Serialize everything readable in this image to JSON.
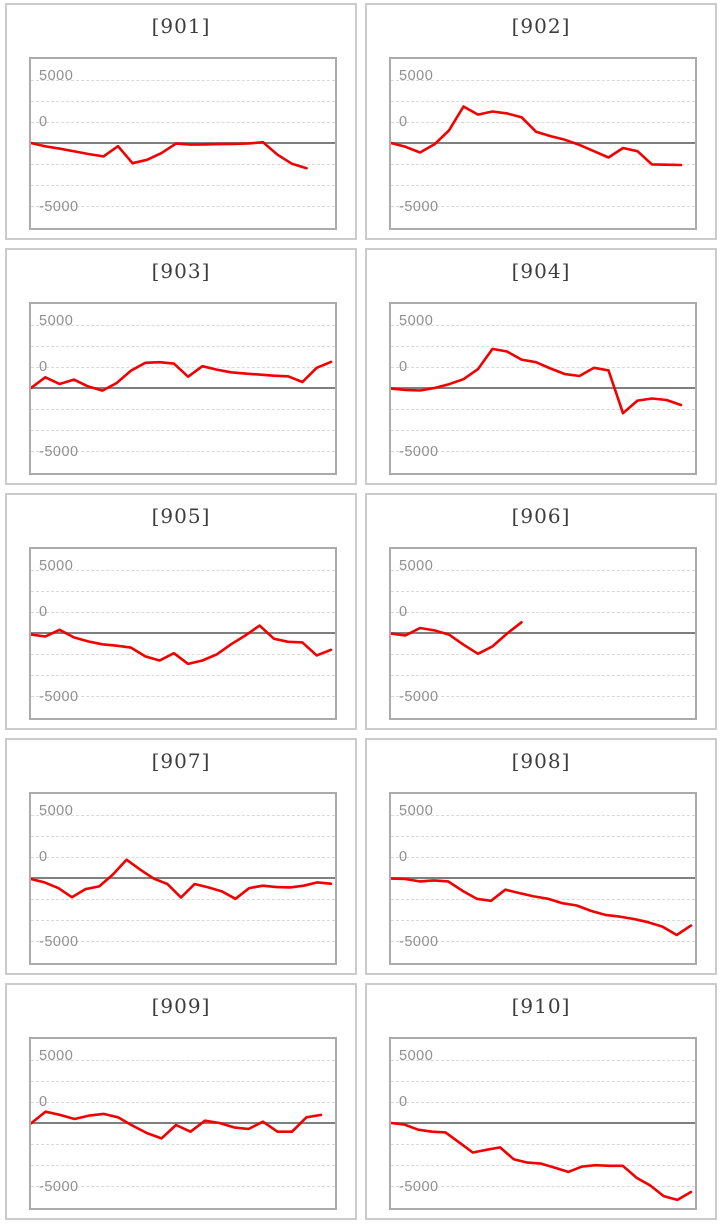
{
  "page_title": "Machine slump graphs 901-910",
  "axis": {
    "tick_labels": [
      "5000",
      "0",
      "-5000"
    ],
    "tick_values": [
      5000,
      0,
      -5000
    ],
    "ylim": [
      -6750,
      6700
    ],
    "gridline_step": 1666,
    "grid_style": "dashed",
    "zero_line": true
  },
  "style": {
    "line_color": "#f20000",
    "zero_line_color": "#7f7f7f",
    "gridline_color": "#d9d9d9",
    "card_border_color": "#cbcbcb",
    "plot_border_color": "#ababab",
    "title_color": "#3d3d3d",
    "label_color": "#8f8f8f"
  },
  "chart_data": [
    {
      "type": "line",
      "title": "[901]",
      "xlabel": "",
      "ylabel": "",
      "values": [
        0,
        -270,
        -450,
        -670,
        -880,
        -1060,
        -250,
        -1600,
        -1330,
        -800,
        -50,
        -130,
        -110,
        -90,
        -70,
        -40,
        60,
        -930,
        -1650,
        -2000
      ]
    },
    {
      "type": "line",
      "title": "[902]",
      "xlabel": "",
      "ylabel": "",
      "values": [
        0,
        -300,
        -750,
        -100,
        1000,
        2900,
        2250,
        2500,
        2350,
        2050,
        900,
        550,
        250,
        -150,
        -650,
        -1150,
        -400,
        -650,
        -1700,
        -1720,
        -1750
      ]
    },
    {
      "type": "line",
      "title": "[903]",
      "xlabel": "",
      "ylabel": "",
      "values": [
        0,
        850,
        320,
        670,
        130,
        -210,
        400,
        1380,
        2000,
        2050,
        1940,
        900,
        1730,
        1460,
        1250,
        1140,
        1060,
        980,
        930,
        480,
        1600,
        2070
      ]
    },
    {
      "type": "line",
      "title": "[904]",
      "xlabel": "",
      "ylabel": "",
      "values": [
        -50,
        -150,
        -200,
        0,
        300,
        700,
        1500,
        3100,
        2900,
        2250,
        2050,
        1550,
        1100,
        950,
        1600,
        1400,
        -2000,
        -1000,
        -830,
        -950,
        -1350
      ]
    },
    {
      "type": "line",
      "title": "[905]",
      "xlabel": "",
      "ylabel": "",
      "values": [
        -130,
        -280,
        250,
        -350,
        -670,
        -900,
        -1010,
        -1160,
        -1860,
        -2180,
        -1600,
        -2450,
        -2180,
        -1700,
        -900,
        -200,
        585,
        -450,
        -700,
        -745,
        -1780,
        -1330
      ]
    },
    {
      "type": "line",
      "title": "[906]",
      "xlabel": "",
      "ylabel": "",
      "values": [
        -50,
        -190,
        400,
        210,
        -130,
        -930,
        -1650,
        -1060,
        -50,
        850
      ]
    },
    {
      "type": "line",
      "title": "[907]",
      "xlabel": "",
      "ylabel": "",
      "values": [
        -80,
        -350,
        -800,
        -1520,
        -880,
        -670,
        270,
        1450,
        670,
        -50,
        -480,
        -1550,
        -480,
        -745,
        -1060,
        -1650,
        -800,
        -610,
        -720,
        -745,
        -610,
        -350,
        -450
      ]
    },
    {
      "type": "line",
      "title": "[908]",
      "xlabel": "",
      "ylabel": "",
      "values": [
        -50,
        -80,
        -270,
        -190,
        -270,
        -1010,
        -1650,
        -1810,
        -930,
        -1200,
        -1460,
        -1650,
        -2000,
        -2180,
        -2610,
        -2930,
        -3060,
        -3250,
        -3510,
        -3860,
        -4520,
        -3780
      ]
    },
    {
      "type": "line",
      "title": "[909]",
      "xlabel": "",
      "ylabel": "",
      "values": [
        -30,
        900,
        640,
        320,
        585,
        720,
        450,
        -210,
        -800,
        -1220,
        -160,
        -690,
        180,
        0,
        -350,
        -480,
        100,
        -690,
        -690,
        450,
        640
      ]
    },
    {
      "type": "line",
      "title": "[910]",
      "xlabel": "",
      "ylabel": "",
      "values": [
        0,
        -130,
        -530,
        -690,
        -745,
        -1540,
        -2340,
        -2130,
        -1940,
        -2870,
        -3140,
        -3220,
        -3540,
        -3880,
        -3460,
        -3350,
        -3400,
        -3400,
        -4340,
        -4950,
        -5800,
        -6100,
        -5480
      ]
    }
  ]
}
